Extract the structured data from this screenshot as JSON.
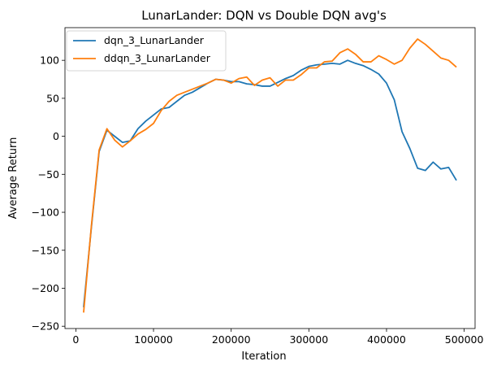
{
  "chart_data": {
    "type": "line",
    "title": "LunarLander: DQN vs Double DQN avg's",
    "xlabel": "Iteration",
    "ylabel": "Average Return",
    "xlim": [
      -14000,
      514000
    ],
    "ylim": [
      -253,
      143
    ],
    "xticks": [
      0,
      100000,
      200000,
      300000,
      400000,
      500000
    ],
    "xtick_labels": [
      "0",
      "100000",
      "200000",
      "300000",
      "400000",
      "500000"
    ],
    "yticks": [
      -250,
      -200,
      -150,
      -100,
      -50,
      0,
      50,
      100
    ],
    "ytick_labels": [
      "−250",
      "−200",
      "−150",
      "−100",
      "−50",
      "0",
      "50",
      "100"
    ],
    "grid": false,
    "legend_position": "top-left",
    "x": [
      10000,
      20000,
      30000,
      40000,
      50000,
      60000,
      70000,
      80000,
      90000,
      100000,
      110000,
      120000,
      130000,
      140000,
      150000,
      160000,
      170000,
      180000,
      190000,
      200000,
      210000,
      220000,
      230000,
      240000,
      250000,
      260000,
      270000,
      280000,
      290000,
      300000,
      310000,
      320000,
      330000,
      340000,
      350000,
      360000,
      370000,
      380000,
      390000,
      400000,
      410000,
      420000,
      430000,
      440000,
      450000,
      460000,
      470000,
      480000,
      490000
    ],
    "series": [
      {
        "name": "dqn_3_LunarLander",
        "color": "#1f77b4",
        "values": [
          -225,
          -120,
          -20,
          8,
          0,
          -8,
          -6,
          10,
          20,
          28,
          36,
          38,
          46,
          54,
          58,
          64,
          70,
          75,
          74,
          72,
          72,
          69,
          68,
          66,
          66,
          71,
          76,
          80,
          87,
          92,
          94,
          95,
          96,
          95,
          100,
          96,
          93,
          88,
          82,
          70,
          48,
          6,
          -16,
          -42,
          -45,
          -34,
          -43,
          -41,
          -58
        ]
      },
      {
        "name": "ddqn_3_LunarLander",
        "color": "#ff7f0e",
        "values": [
          -232,
          -118,
          -18,
          10,
          -5,
          -14,
          -6,
          3,
          9,
          17,
          34,
          46,
          54,
          58,
          62,
          66,
          70,
          75,
          74,
          70,
          76,
          78,
          67,
          74,
          77,
          66,
          74,
          74,
          81,
          90,
          90,
          98,
          99,
          110,
          115,
          108,
          98,
          98,
          106,
          101,
          95,
          100,
          116,
          128,
          121,
          112,
          103,
          100,
          91
        ]
      }
    ]
  }
}
